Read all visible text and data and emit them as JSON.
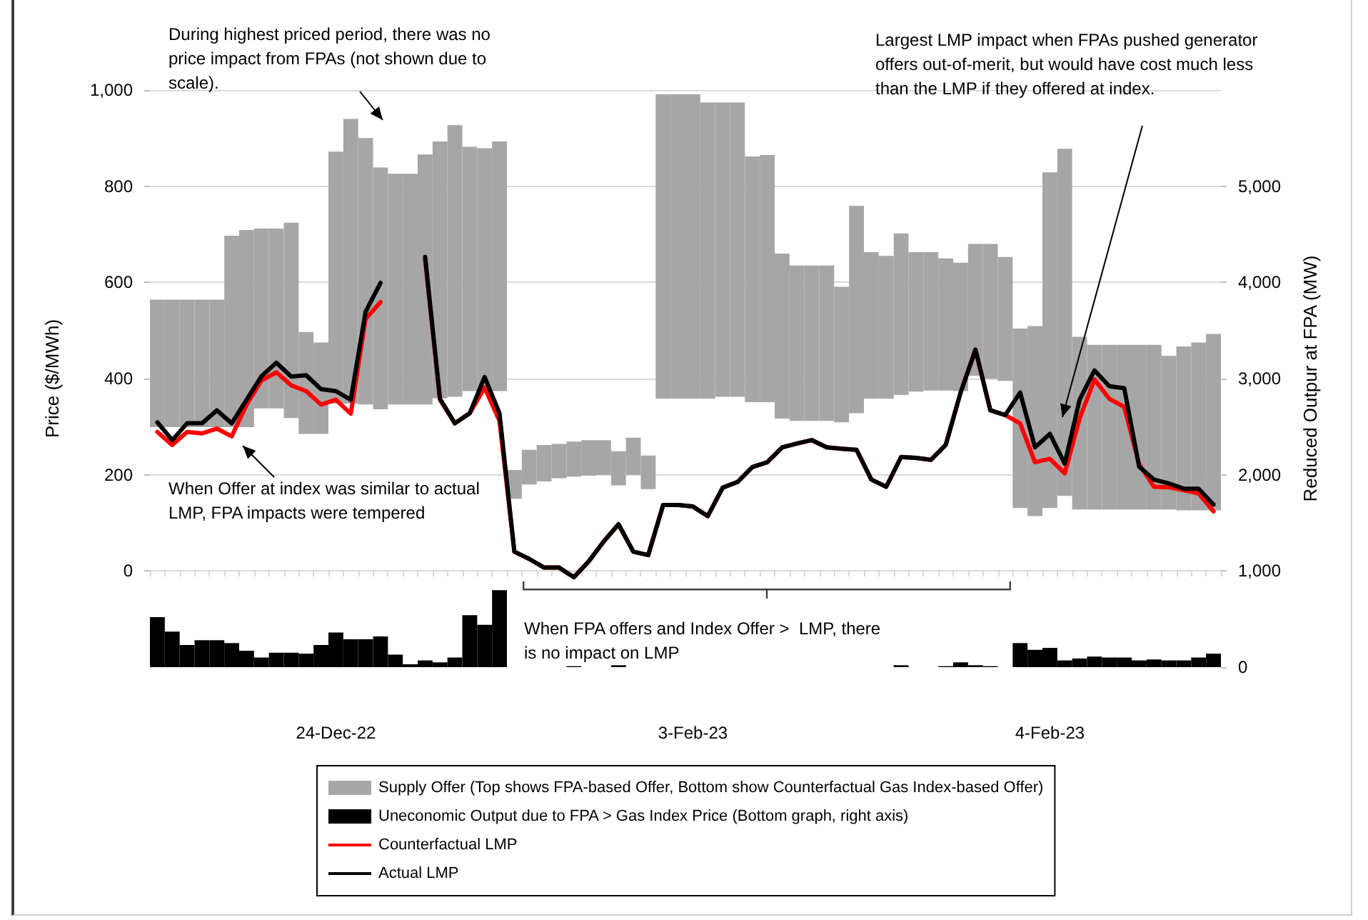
{
  "chart_data": {
    "type": "bar",
    "ylabel": "Price ($/MWh)",
    "y2label": "Reduced Outpur at FPA (MW)",
    "categories": [
      null,
      null,
      null,
      null,
      null,
      null,
      null,
      null,
      null,
      null,
      null,
      null,
      "24-Dec-22",
      null,
      null,
      null,
      null,
      null,
      null,
      null,
      null,
      null,
      null,
      null,
      null,
      null,
      null,
      null,
      null,
      null,
      null,
      null,
      null,
      null,
      null,
      null,
      "3-Feb-23",
      null,
      null,
      null,
      null,
      null,
      null,
      null,
      null,
      null,
      null,
      null,
      null,
      null,
      null,
      null,
      null,
      null,
      null,
      null,
      null,
      null,
      null,
      null,
      "4-Feb-23",
      null,
      null,
      null,
      null,
      null,
      null,
      null,
      null,
      null,
      null,
      null
    ],
    "series": [
      {
        "name": "Supply Offer (Top shows FPA-based Offer, Bottom show Counterfactual Gas Index-based Offer)",
        "color": "#a6a6a6",
        "base": [
          299,
          299,
          299,
          299,
          299,
          299,
          299,
          338,
          338,
          318,
          285,
          285,
          348,
          348,
          346,
          336,
          346,
          346,
          346,
          359,
          362,
          374,
          374,
          374,
          150,
          180,
          186,
          193,
          196,
          198,
          200,
          178,
          200,
          170,
          358,
          358,
          358,
          358,
          362,
          362,
          351,
          351,
          317,
          312,
          312,
          312,
          309,
          328,
          358,
          358,
          366,
          373,
          375,
          375,
          374,
          406,
          400,
          395,
          131,
          114,
          131,
          156,
          128,
          128,
          128,
          128,
          128,
          128,
          128,
          126,
          126,
          126
        ],
        "values": [
          265,
          265,
          265,
          265,
          265,
          398,
          410,
          374,
          374,
          406,
          212,
          190,
          524,
          592,
          554,
          503,
          480,
          480,
          520,
          534,
          565,
          508,
          505,
          519,
          60,
          72,
          76,
          71,
          73,
          74,
          72,
          71,
          77,
          70,
          633,
          633,
          633,
          616,
          612,
          612,
          511,
          514,
          343,
          323,
          323,
          323,
          282,
          431,
          305,
          297,
          336,
          290,
          288,
          275,
          267,
          274,
          280,
          258,
          373,
          395,
          698,
          722,
          359,
          342,
          342,
          342,
          342,
          342,
          319,
          341,
          349,
          367
        ]
      },
      {
        "name": "Uneconomic Output due to FPA > Gas Index Price (Bottom graph, right axis)",
        "axis": "y2",
        "color": "#000000",
        "values": [
          520,
          370,
          230,
          280,
          280,
          250,
          170,
          100,
          150,
          150,
          140,
          230,
          360,
          290,
          290,
          320,
          130,
          30,
          70,
          50,
          100,
          540,
          440,
          800,
          0,
          0,
          0,
          0,
          10,
          0,
          0,
          20,
          0,
          0,
          0,
          0,
          0,
          0,
          0,
          0,
          0,
          0,
          0,
          0,
          0,
          0,
          0,
          0,
          0,
          0,
          20,
          0,
          0,
          10,
          50,
          20,
          10,
          0,
          250,
          180,
          200,
          70,
          90,
          110,
          100,
          100,
          70,
          80,
          70,
          70,
          100,
          140
        ]
      },
      {
        "name": "Counterfactual LMP",
        "type": "line",
        "color": "#ff0000",
        "values": [
          289,
          262,
          289,
          286,
          296,
          280,
          346,
          396,
          413,
          386,
          374,
          346,
          356,
          327,
          524,
          559,
          null,
          null,
          648,
          356,
          307,
          328,
          381,
          312,
          40,
          25,
          7,
          7,
          -13,
          20,
          61,
          97,
          40,
          33,
          137,
          137,
          134,
          114,
          173,
          185,
          216,
          226,
          257,
          265,
          272,
          257,
          254,
          252,
          190,
          175,
          237,
          235,
          231,
          262,
          371,
          460,
          334,
          324,
          307,
          226,
          233,
          203,
          317,
          398,
          358,
          341,
          222,
          175,
          174,
          168,
          161,
          124
        ]
      },
      {
        "name": "Actual LMP",
        "type": "line",
        "color": "#000000",
        "values": [
          309,
          272,
          307,
          307,
          334,
          307,
          356,
          405,
          433,
          404,
          407,
          378,
          374,
          356,
          539,
          599,
          null,
          null,
          653,
          358,
          307,
          328,
          403,
          328,
          40,
          25,
          7,
          7,
          -13,
          20,
          61,
          97,
          40,
          33,
          137,
          137,
          134,
          114,
          173,
          185,
          216,
          226,
          257,
          265,
          272,
          257,
          254,
          252,
          190,
          175,
          237,
          235,
          231,
          262,
          371,
          460,
          334,
          324,
          371,
          257,
          285,
          223,
          356,
          417,
          384,
          380,
          217,
          190,
          182,
          171,
          171,
          138
        ]
      }
    ],
    "ylim": [
      -200,
      1000
    ],
    "yticks": [
      0,
      200,
      400,
      600,
      800,
      {
        "value": 1000,
        "label": "1,000"
      }
    ],
    "y2lim": [
      0,
      6000
    ],
    "y2ticks": [
      0,
      {
        "value": 1000,
        "label": "1,000"
      },
      {
        "value": 2000,
        "label": "2,000"
      },
      {
        "value": 3000,
        "label": "3,000"
      },
      {
        "value": 4000,
        "label": "4,000"
      },
      {
        "value": 5000,
        "label": "5,000"
      }
    ],
    "grid": "y",
    "legend": "bottom",
    "marker": "none",
    "line_style": "solid",
    "annotations": [
      "During highest priced period, there was no price impact from FPAs (not shown due to scale).",
      "Largest LMP impact when FPAs pushed generator offers out-of-merit, but would have cost much less than the LMP if they offered at index.",
      "When Offer at index was similar to actual LMP, FPA impacts were tempered",
      "When FPA offers and Index Offer >  LMP, there is no impact on LMP"
    ]
  }
}
